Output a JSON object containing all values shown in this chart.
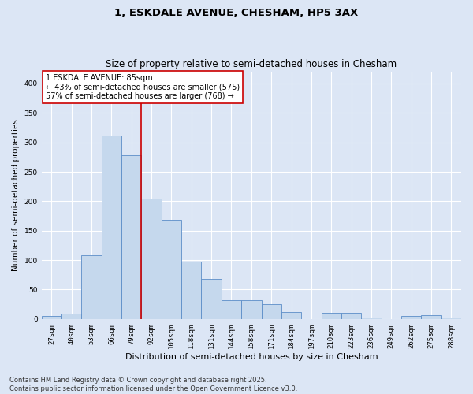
{
  "title": "1, ESKDALE AVENUE, CHESHAM, HP5 3AX",
  "subtitle": "Size of property relative to semi-detached houses in Chesham",
  "xlabel": "Distribution of semi-detached houses by size in Chesham",
  "ylabel": "Number of semi-detached properties",
  "categories": [
    "27sqm",
    "40sqm",
    "53sqm",
    "66sqm",
    "79sqm",
    "92sqm",
    "105sqm",
    "118sqm",
    "131sqm",
    "144sqm",
    "158sqm",
    "171sqm",
    "184sqm",
    "197sqm",
    "210sqm",
    "223sqm",
    "236sqm",
    "249sqm",
    "262sqm",
    "275sqm",
    "288sqm"
  ],
  "values": [
    5,
    9,
    108,
    312,
    278,
    205,
    168,
    97,
    68,
    32,
    32,
    25,
    12,
    0,
    10,
    10,
    3,
    0,
    5,
    6,
    2
  ],
  "bar_color": "#c5d8ed",
  "bar_edge_color": "#5b8dc8",
  "bar_linewidth": 0.6,
  "vline_x": 4.5,
  "vline_color": "#cc0000",
  "annotation_text": "1 ESKDALE AVENUE: 85sqm\n← 43% of semi-detached houses are smaller (575)\n57% of semi-detached houses are larger (768) →",
  "annotation_box_color": "#ffffff",
  "annotation_box_edge": "#cc0000",
  "ylim": [
    0,
    420
  ],
  "yticks": [
    0,
    50,
    100,
    150,
    200,
    250,
    300,
    350,
    400
  ],
  "background_color": "#dce6f5",
  "plot_bg_color": "#dce6f5",
  "grid_color": "#ffffff",
  "footer": "Contains HM Land Registry data © Crown copyright and database right 2025.\nContains public sector information licensed under the Open Government Licence v3.0.",
  "title_fontsize": 9.5,
  "subtitle_fontsize": 8.5,
  "xlabel_fontsize": 8,
  "ylabel_fontsize": 7.5,
  "tick_fontsize": 6.5,
  "annotation_fontsize": 7,
  "footer_fontsize": 6
}
